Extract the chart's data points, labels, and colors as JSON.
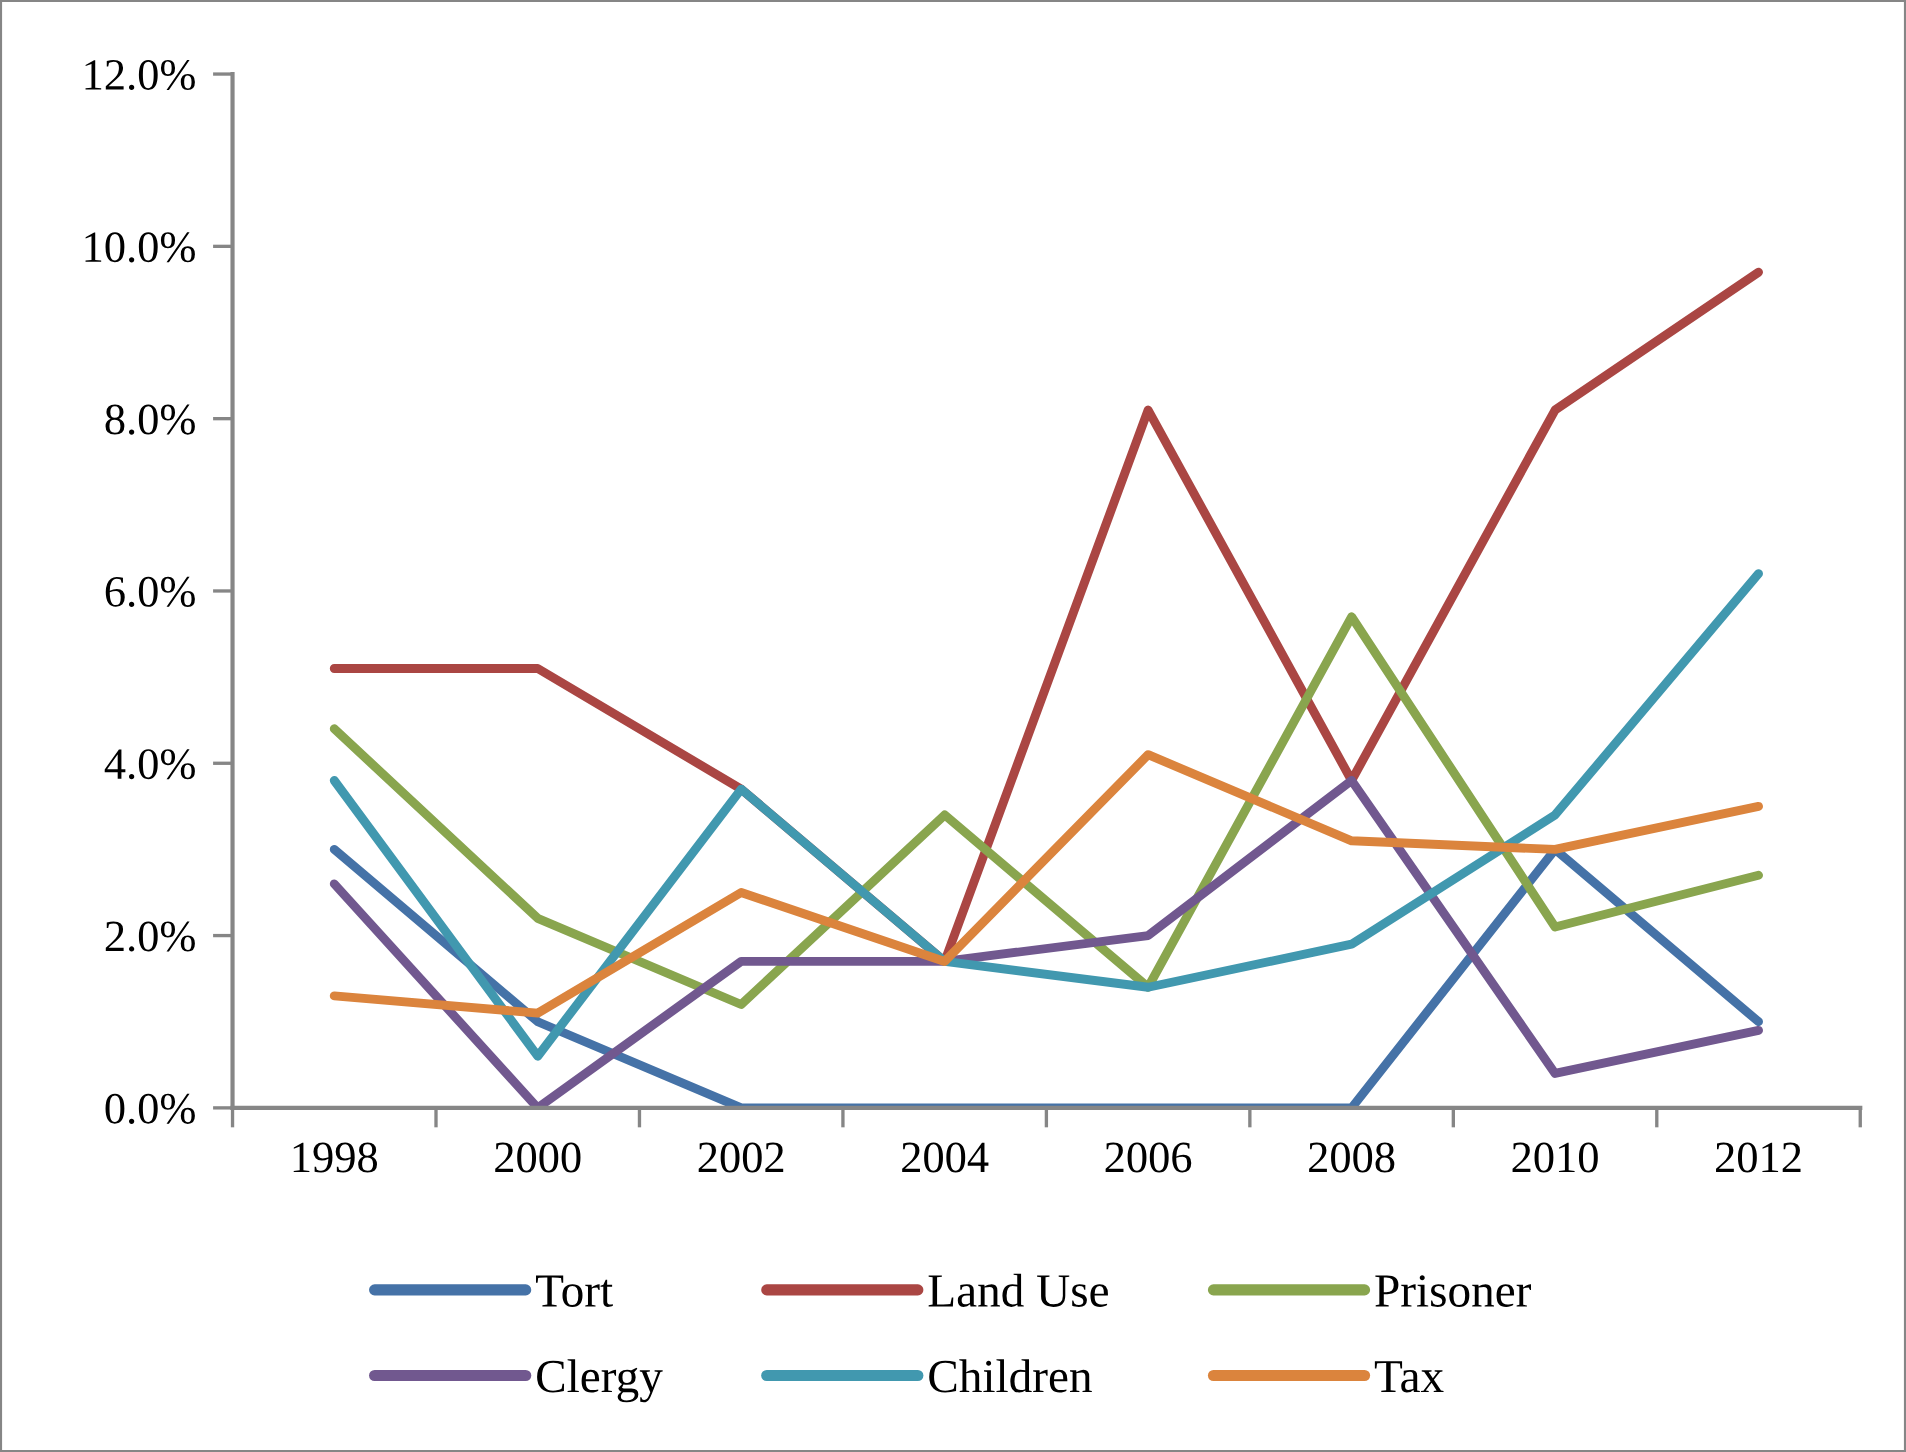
{
  "chart_data": {
    "type": "line",
    "categories": [
      "1998",
      "2000",
      "2002",
      "2004",
      "2006",
      "2008",
      "2010",
      "2012"
    ],
    "series": [
      {
        "name": "Tort",
        "color": "#4572a7",
        "values": [
          3.0,
          1.0,
          0.0,
          0.0,
          0.0,
          0.0,
          3.0,
          1.0
        ]
      },
      {
        "name": "Land Use",
        "color": "#aa4643",
        "values": [
          5.1,
          5.1,
          3.7,
          1.7,
          8.1,
          3.8,
          8.1,
          9.7
        ]
      },
      {
        "name": "Prisoner",
        "color": "#89a54e",
        "values": [
          4.4,
          2.2,
          1.2,
          3.4,
          1.4,
          5.7,
          2.1,
          2.7
        ]
      },
      {
        "name": "Clergy",
        "color": "#71588f",
        "values": [
          2.6,
          0.0,
          1.7,
          1.7,
          2.0,
          3.8,
          0.4,
          0.9
        ]
      },
      {
        "name": "Children",
        "color": "#4198af",
        "values": [
          3.8,
          0.6,
          3.7,
          1.7,
          1.4,
          1.9,
          3.4,
          6.2
        ]
      },
      {
        "name": "Tax",
        "color": "#db843d",
        "values": [
          1.3,
          1.1,
          2.5,
          1.7,
          4.1,
          3.1,
          3.0,
          3.5
        ]
      }
    ],
    "ylim": [
      0,
      12
    ],
    "yticks": [
      {
        "value": 0,
        "label": "0.0%"
      },
      {
        "value": 2,
        "label": "2.0%"
      },
      {
        "value": 4,
        "label": "4.0%"
      },
      {
        "value": 6,
        "label": "6.0%"
      },
      {
        "value": 8,
        "label": "8.0%"
      },
      {
        "value": 10,
        "label": "10.0%"
      },
      {
        "value": 12,
        "label": "12.0%"
      }
    ],
    "grid": false,
    "legend": "bottom",
    "marker": "none",
    "line_style": "solid"
  }
}
